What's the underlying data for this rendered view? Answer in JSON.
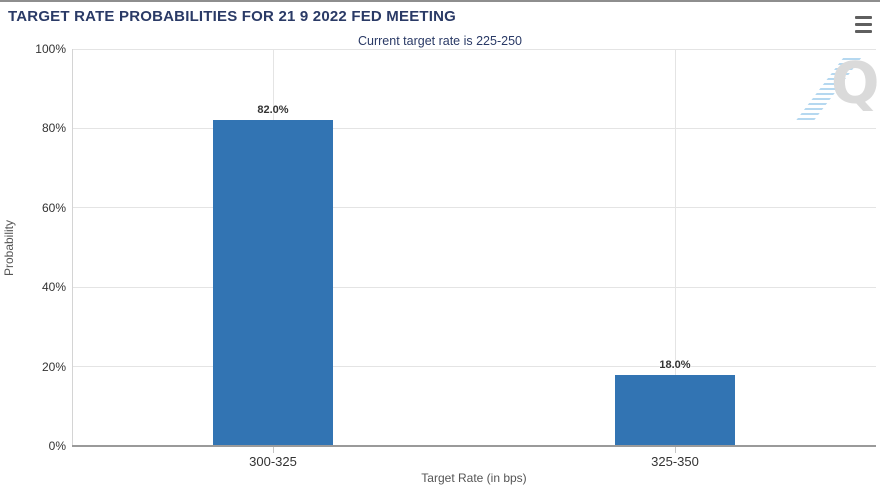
{
  "header": {
    "title": "TARGET RATE PROBABILITIES FOR 21 9 2022 FED MEETING"
  },
  "watermark": {
    "letter": "Q"
  },
  "chart_data": {
    "type": "bar",
    "title": "TARGET RATE PROBABILITIES FOR 21 9 2022 FED MEETING",
    "subtitle": "Current target rate is 225-250",
    "categories": [
      "300-325",
      "325-350"
    ],
    "values": [
      82.0,
      18.0
    ],
    "value_labels": [
      "82.0%",
      "18.0%"
    ],
    "xlabel": "Target Rate (in bps)",
    "ylabel": "Probability",
    "ylim": [
      0,
      100
    ],
    "yticks": [
      0,
      20,
      40,
      60,
      80,
      100
    ],
    "ytick_labels": [
      "0%",
      "20%",
      "40%",
      "60%",
      "80%",
      "100%"
    ],
    "grid": true,
    "legend": false,
    "bar_color": "#3274b3",
    "title_color": "#2a3a66"
  }
}
